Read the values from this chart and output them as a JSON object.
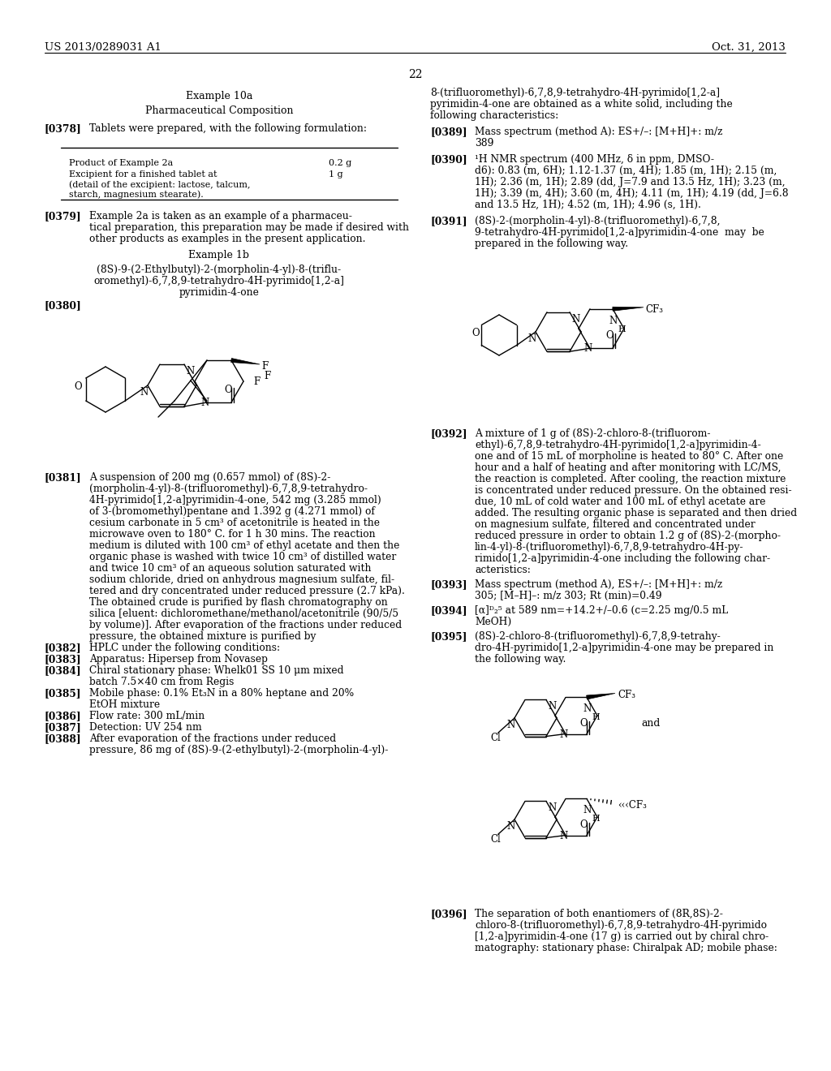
{
  "patent_number": "US 2013/0289031 A1",
  "date": "Oct. 31, 2013",
  "page_number": "22",
  "background_color": "#ffffff",
  "text_color": "#000000"
}
